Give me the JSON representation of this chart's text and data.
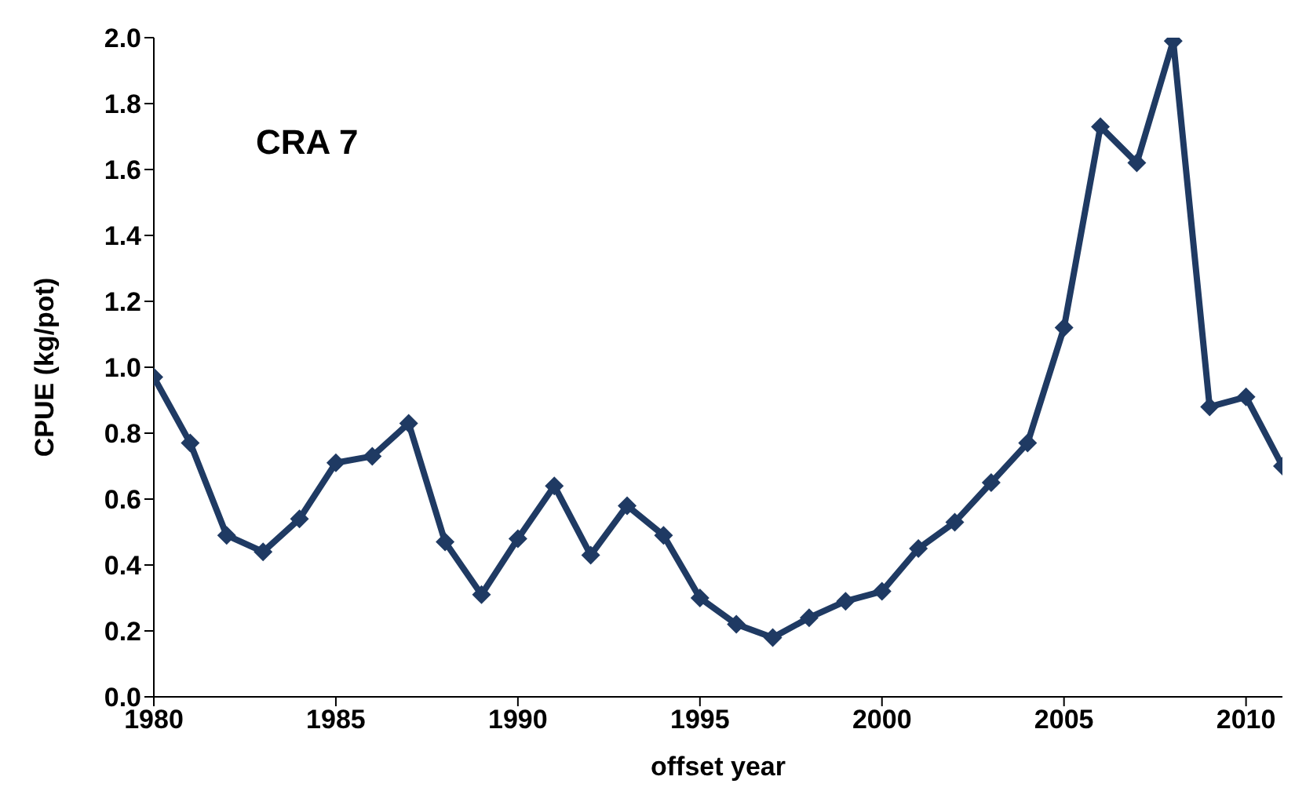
{
  "chart_data": {
    "type": "line",
    "xlabel": "offset year",
    "ylabel": "CPUE (kg/pot)",
    "annotations": [
      "CRA 7"
    ],
    "x": [
      1980,
      1981,
      1982,
      1983,
      1984,
      1985,
      1986,
      1987,
      1988,
      1989,
      1990,
      1991,
      1992,
      1993,
      1994,
      1995,
      1996,
      1997,
      1998,
      1999,
      2000,
      2001,
      2002,
      2003,
      2004,
      2005,
      2006,
      2007,
      2008,
      2009,
      2010,
      2011
    ],
    "series": [
      {
        "color": "#1f3a63",
        "values": [
          0.97,
          0.77,
          0.49,
          0.44,
          0.54,
          0.71,
          0.73,
          0.83,
          0.47,
          0.31,
          0.48,
          0.64,
          0.43,
          0.58,
          0.49,
          0.3,
          0.22,
          0.18,
          0.24,
          0.29,
          0.32,
          0.45,
          0.53,
          0.65,
          0.77,
          1.12,
          1.73,
          1.62,
          1.99,
          0.88,
          0.91,
          0.7
        ]
      }
    ],
    "xlim": [
      1980,
      2011
    ],
    "xticks": [
      1980,
      1985,
      1990,
      1995,
      2000,
      2005,
      2010
    ],
    "ylim": [
      0,
      2
    ],
    "yticks": [
      {
        "value": 0,
        "label": "0.0"
      },
      {
        "value": 0.2,
        "label": "0.2"
      },
      {
        "value": 0.4,
        "label": "0.4"
      },
      {
        "value": 0.6,
        "label": "0.6"
      },
      {
        "value": 0.8,
        "label": "0.8"
      },
      {
        "value": 1,
        "label": "1.0"
      },
      {
        "value": 1.2,
        "label": "1.2"
      },
      {
        "value": 1.4,
        "label": "1.4"
      },
      {
        "value": 1.6,
        "label": "1.6"
      },
      {
        "value": 1.8,
        "label": "1.8"
      },
      {
        "value": 2,
        "label": "2.0"
      }
    ],
    "grid": false,
    "legend": false,
    "marker": "diamond",
    "line_style": "solid"
  }
}
